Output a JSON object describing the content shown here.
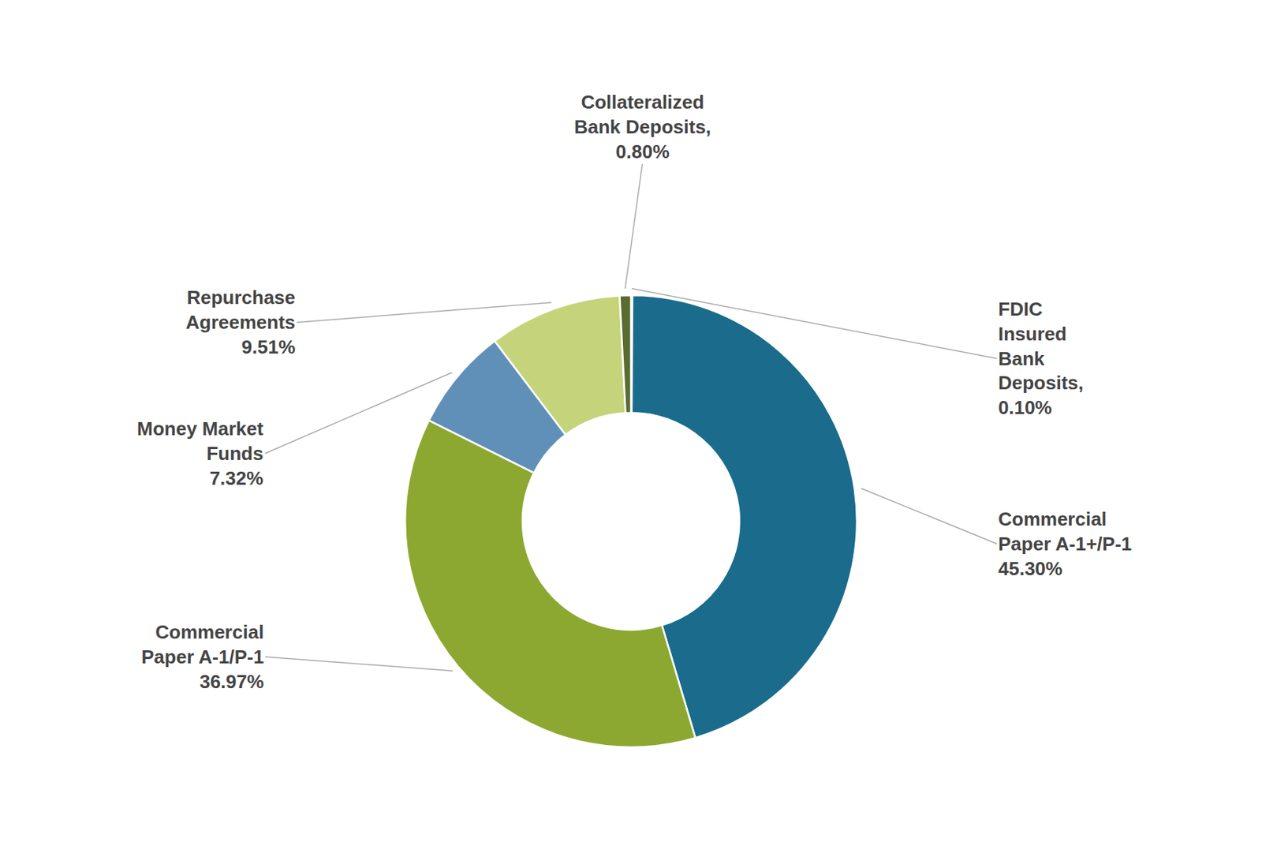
{
  "chart_data": {
    "type": "pie",
    "values": [
      0.1,
      45.3,
      36.97,
      7.32,
      9.51,
      0.8
    ],
    "colors": [
      "#1a6b8c",
      "#1a6b8c",
      "#8da830",
      "#6090b8",
      "#c5d47a",
      "#5a6b30"
    ],
    "annotations": [
      "FDIC\nInsured\nBank\nDeposits,\n0.10%",
      "Commercial\nPaper A-1+/P-1\n45.30%",
      "Commercial\nPaper A-1/P-1\n36.97%",
      "Money Market\nFunds\n7.32%",
      "Repurchase\nAgreements\n9.51%",
      "Collateralized\nBank Deposits,\n0.80%"
    ]
  }
}
